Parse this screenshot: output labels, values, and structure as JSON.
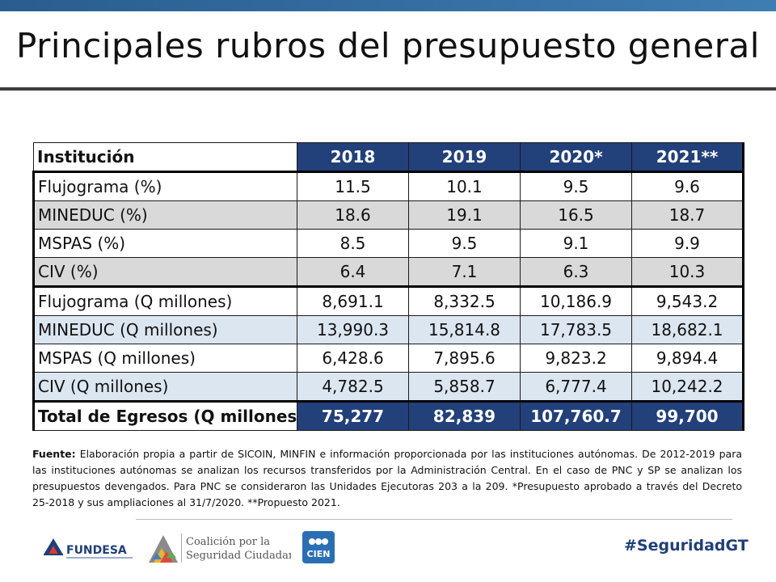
{
  "title": "Principales rubros del presupuesto general",
  "table": {
    "header": {
      "label": "Institución",
      "years": [
        "2018",
        "2019",
        "2020*",
        "2021**"
      ]
    },
    "rows": [
      {
        "label": "Flujograma (%)",
        "values": [
          "11.5",
          "10.1",
          "9.5",
          "9.6"
        ]
      },
      {
        "label": "MINEDUC (%)",
        "values": [
          "18.6",
          "19.1",
          "16.5",
          "18.7"
        ]
      },
      {
        "label": "MSPAS (%)",
        "values": [
          "8.5",
          "9.5",
          "9.1",
          "9.9"
        ]
      },
      {
        "label": "CIV (%)",
        "values": [
          "6.4",
          "7.1",
          "6.3",
          "10.3"
        ]
      },
      {
        "label": "Flujograma (Q millones)",
        "values": [
          "8,691.1",
          "8,332.5",
          "10,186.9",
          "9,543.2"
        ]
      },
      {
        "label": "MINEDUC (Q millones)",
        "values": [
          "13,990.3",
          "15,814.8",
          "17,783.5",
          "18,682.1"
        ]
      },
      {
        "label": "MSPAS (Q millones)",
        "values": [
          "6,428.6",
          "7,895.6",
          "9,823.2",
          "9,894.4"
        ]
      },
      {
        "label": "CIV (Q millones)",
        "values": [
          "4,782.5",
          "5,858.7",
          "6,777.4",
          "10,242.2"
        ]
      }
    ],
    "total": {
      "label": "Total de Egresos (Q millones)",
      "values": [
        "75,277",
        "82,839",
        "107,760.7",
        "99,700"
      ]
    }
  },
  "source": {
    "label": "Fuente:",
    "text": "Elaboración propia a partir de SICOIN, MINFIN e información proporcionada por las instituciones autónomas. De 2012-2019 para las instituciones autónomas se analizan los recursos transferidos por la Administración Central. En el caso de PNC y SP se analizan los presupuestos devengados. Para PNC se consideraron las Unidades Ejecutoras 203 a la 209. *Presupuesto aprobado a través del Decreto 25-2018 y sus ampliaciones al 31/7/2020. **Propuesto 2021."
  },
  "footer": {
    "fundesa": "FUNDESA",
    "coalicion_line1": "Coalición por la",
    "coalicion_line2": "Seguridad Ciudadana",
    "cien": "CIEN",
    "hashtag": "#SeguridadGT"
  }
}
